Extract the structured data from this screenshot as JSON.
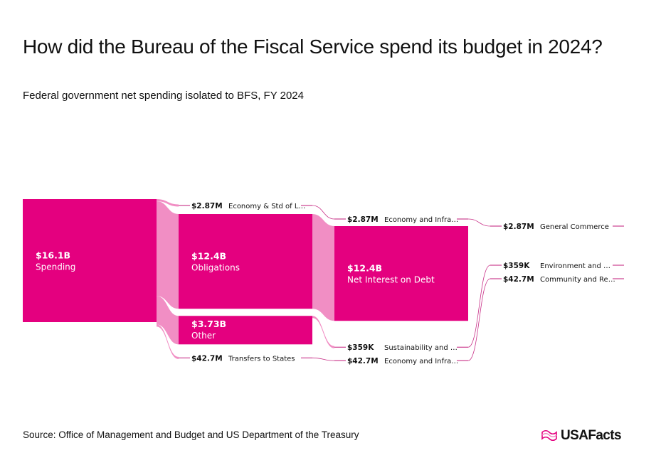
{
  "title": "How did the Bureau of the Fiscal Service spend its budget in 2024?",
  "subtitle": "Federal government net spending isolated to BFS, FY 2024",
  "source": "Source: Office of Management and Budget and US Department of the Treasury",
  "brand": {
    "name": "USAFacts",
    "logo_icon": "usafacts-flag-icon"
  },
  "colors": {
    "node": "#e4007f",
    "link": "#f088c1",
    "leader": "#c2187a",
    "text": "#111111"
  },
  "chart_data": {
    "type": "sankey",
    "unit": "USD",
    "nodes": [
      {
        "id": "spending",
        "value_label": "$16.1B",
        "label": "Spending",
        "value": 16100000000,
        "column": 0
      },
      {
        "id": "econ_std",
        "value_label": "$2.87M",
        "label": "Economy & Std of L…",
        "value": 2870000,
        "column": 1
      },
      {
        "id": "obligations",
        "value_label": "$12.4B",
        "label": "Obligations",
        "value": 12400000000,
        "column": 1
      },
      {
        "id": "other",
        "value_label": "$3.73B",
        "label": "Other",
        "value": 3730000000,
        "column": 1
      },
      {
        "id": "transfers",
        "value_label": "$42.7M",
        "label": "Transfers to States",
        "value": 42700000,
        "column": 1
      },
      {
        "id": "econ_infra_1",
        "value_label": "$2.87M",
        "label": "Economy and Infra…",
        "value": 2870000,
        "column": 2
      },
      {
        "id": "net_interest",
        "value_label": "$12.4B",
        "label": "Net Interest on Debt",
        "value": 12400000000,
        "column": 2
      },
      {
        "id": "sustain",
        "value_label": "$359K",
        "label": "Sustainability and …",
        "value": 359000,
        "column": 2
      },
      {
        "id": "econ_infra_2",
        "value_label": "$42.7M",
        "label": "Economy and Infra…",
        "value": 42700000,
        "column": 2
      },
      {
        "id": "gen_commerce",
        "value_label": "$2.87M",
        "label": "General Commerce",
        "value": 2870000,
        "column": 3
      },
      {
        "id": "environment",
        "value_label": "$359K",
        "label": "Environment and …",
        "value": 359000,
        "column": 3
      },
      {
        "id": "community",
        "value_label": "$42.7M",
        "label": "Community and Re…",
        "value": 42700000,
        "column": 3
      }
    ],
    "links": [
      {
        "source": "spending",
        "target": "econ_std",
        "value": 2870000
      },
      {
        "source": "spending",
        "target": "obligations",
        "value": 12400000000
      },
      {
        "source": "spending",
        "target": "other",
        "value": 3730000000
      },
      {
        "source": "spending",
        "target": "transfers",
        "value": 42700000
      },
      {
        "source": "econ_std",
        "target": "econ_infra_1",
        "value": 2870000
      },
      {
        "source": "obligations",
        "target": "net_interest",
        "value": 12400000000
      },
      {
        "source": "other",
        "target": "sustain",
        "value": 359000
      },
      {
        "source": "transfers",
        "target": "econ_infra_2",
        "value": 42700000
      },
      {
        "source": "econ_infra_1",
        "target": "gen_commerce",
        "value": 2870000
      },
      {
        "source": "sustain",
        "target": "environment",
        "value": 359000
      },
      {
        "source": "econ_infra_2",
        "target": "community",
        "value": 42700000
      }
    ]
  }
}
